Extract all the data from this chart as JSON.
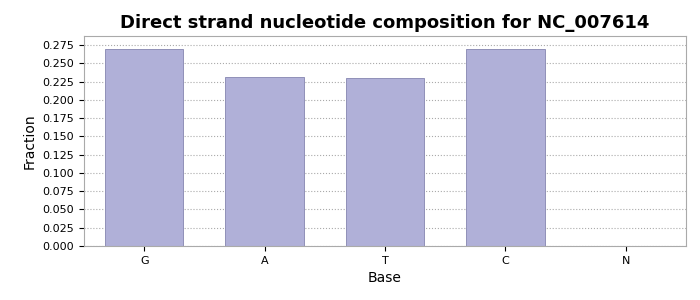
{
  "title": "Direct strand nucleotide composition for NC_007614",
  "categories": [
    "G",
    "A",
    "T",
    "C",
    "N"
  ],
  "values": [
    0.27,
    0.232,
    0.23,
    0.27,
    0.0
  ],
  "bar_color": "#b0b0d8",
  "bar_edgecolor": "#9090b8",
  "xlabel": "Base",
  "ylabel": "Fraction",
  "ylim": [
    0.0,
    0.2875
  ],
  "yticks": [
    0.0,
    0.025,
    0.05,
    0.075,
    0.1,
    0.125,
    0.15,
    0.175,
    0.2,
    0.225,
    0.25,
    0.275
  ],
  "title_fontsize": 13,
  "axis_label_fontsize": 10,
  "tick_fontsize": 8,
  "grid_color": "#aaaaaa",
  "grid_linestyle": "dotted",
  "background_color": "#ffffff",
  "figsize": [
    7.0,
    3.0
  ],
  "dpi": 100
}
